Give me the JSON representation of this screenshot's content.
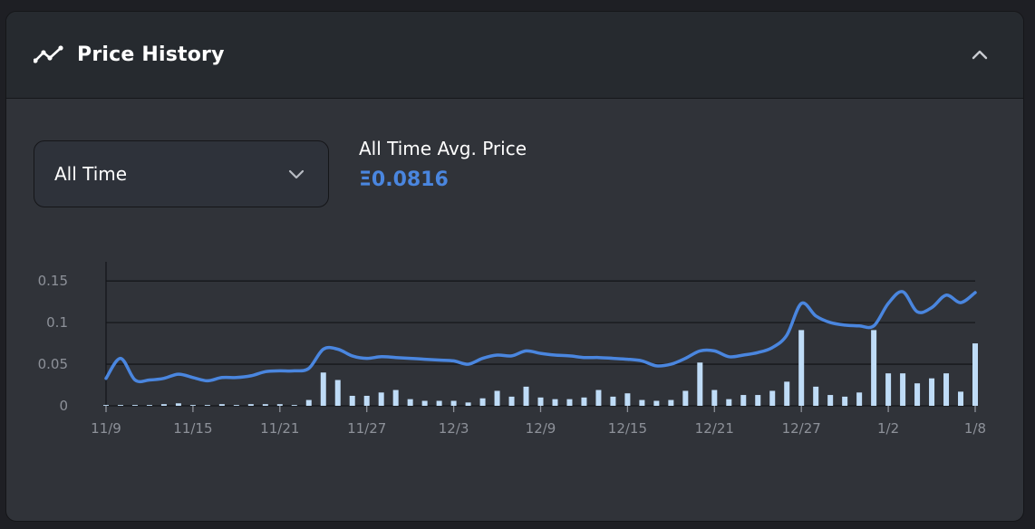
{
  "header": {
    "title": "Price History",
    "icon": "trend-line-icon",
    "collapse_icon": "chevron-up-icon"
  },
  "range_select": {
    "value": "All Time",
    "icon": "chevron-down-icon"
  },
  "summary": {
    "label": "All Time Avg. Price",
    "value": "Ξ0.0816"
  },
  "colors": {
    "line": "#4a86df",
    "bar": "#bfdcf7",
    "grid": "#15171b",
    "tick_text": "#8d9199"
  },
  "chart_data": {
    "type": "line",
    "x": [
      0,
      1,
      2,
      3,
      4,
      5,
      6,
      7,
      8,
      9,
      10,
      11,
      12,
      13,
      14,
      15,
      16,
      17,
      18,
      19,
      20,
      21,
      22,
      23,
      24,
      25,
      26,
      27,
      28,
      29,
      30,
      31,
      32,
      33,
      34,
      35,
      36,
      37,
      38,
      39,
      40,
      41,
      42,
      43,
      44,
      45,
      46,
      47,
      48,
      49,
      50,
      51,
      52,
      53,
      54,
      55,
      56,
      57,
      58,
      59,
      60
    ],
    "x_tick_positions": [
      0,
      6,
      12,
      18,
      24,
      30,
      36,
      42,
      48,
      54,
      60
    ],
    "x_tick_labels": [
      "11/9",
      "11/15",
      "11/21",
      "11/27",
      "12/3",
      "12/9",
      "12/15",
      "12/21",
      "12/27",
      "1/2",
      "1/8"
    ],
    "yticks": [
      0,
      0.05,
      0.1,
      0.15
    ],
    "ytick_labels": [
      "0",
      "0.05",
      "0.1",
      "0.15"
    ],
    "ylim": [
      0,
      0.16
    ],
    "series": [
      {
        "role": "price_line",
        "values": [
          0.033,
          0.057,
          0.031,
          0.031,
          0.033,
          0.038,
          0.034,
          0.03,
          0.034,
          0.034,
          0.036,
          0.041,
          0.042,
          0.042,
          0.045,
          0.068,
          0.068,
          0.06,
          0.057,
          0.059,
          0.058,
          0.057,
          0.056,
          0.055,
          0.054,
          0.05,
          0.057,
          0.061,
          0.06,
          0.066,
          0.063,
          0.061,
          0.06,
          0.058,
          0.058,
          0.057,
          0.056,
          0.054,
          0.048,
          0.05,
          0.057,
          0.066,
          0.066,
          0.059,
          0.061,
          0.064,
          0.07,
          0.085,
          0.123,
          0.108,
          0.1,
          0.097,
          0.096,
          0.096,
          0.123,
          0.137,
          0.113,
          0.118,
          0.133,
          0.124,
          0.136
        ]
      },
      {
        "role": "volume_bars",
        "values": [
          0.001,
          0.001,
          0.001,
          0.001,
          0.002,
          0.003,
          0.001,
          0.001,
          0.002,
          0.001,
          0.002,
          0.002,
          0.002,
          0.001,
          0.007,
          0.04,
          0.031,
          0.012,
          0.012,
          0.016,
          0.019,
          0.008,
          0.006,
          0.006,
          0.006,
          0.004,
          0.009,
          0.018,
          0.011,
          0.023,
          0.01,
          0.008,
          0.008,
          0.01,
          0.019,
          0.011,
          0.015,
          0.007,
          0.006,
          0.007,
          0.018,
          0.052,
          0.019,
          0.008,
          0.013,
          0.013,
          0.018,
          0.029,
          0.091,
          0.023,
          0.013,
          0.011,
          0.016,
          0.091,
          0.039,
          0.039,
          0.027,
          0.033,
          0.039,
          0.017,
          0.075
        ]
      }
    ]
  }
}
